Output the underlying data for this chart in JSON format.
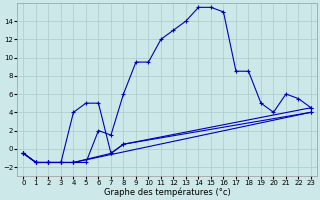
{
  "xlabel": "Graphe des températures (°c)",
  "background_color": "#cce8e8",
  "grid_color": "#aacccc",
  "line_color": "#0000bb",
  "xlim": [
    -0.5,
    23.5
  ],
  "ylim": [
    -3.0,
    16.0
  ],
  "xticks": [
    0,
    1,
    2,
    3,
    4,
    5,
    6,
    7,
    8,
    9,
    10,
    11,
    12,
    13,
    14,
    15,
    16,
    17,
    18,
    19,
    20,
    21,
    22,
    23
  ],
  "yticks": [
    -2,
    0,
    2,
    4,
    6,
    8,
    10,
    12,
    14
  ],
  "series_main": [
    [
      0,
      -0.5
    ],
    [
      1,
      -1.5
    ],
    [
      2,
      -1.5
    ],
    [
      3,
      -1.5
    ],
    [
      4,
      -1.5
    ],
    [
      5,
      -1.5
    ],
    [
      6,
      2.0
    ],
    [
      7,
      1.5
    ],
    [
      8,
      6.0
    ],
    [
      9,
      9.5
    ],
    [
      10,
      9.5
    ],
    [
      11,
      12.0
    ],
    [
      12,
      13.0
    ],
    [
      13,
      14.0
    ],
    [
      14,
      15.5
    ],
    [
      15,
      15.5
    ],
    [
      16,
      15.0
    ],
    [
      17,
      8.5
    ],
    [
      18,
      8.5
    ],
    [
      19,
      5.0
    ],
    [
      20,
      4.0
    ],
    [
      21,
      6.0
    ],
    [
      22,
      5.5
    ],
    [
      23,
      4.5
    ]
  ],
  "series2": [
    [
      0,
      -0.5
    ],
    [
      1,
      -1.5
    ],
    [
      2,
      -1.5
    ],
    [
      3,
      -1.5
    ],
    [
      4,
      4.0
    ],
    [
      5,
      5.0
    ],
    [
      6,
      5.0
    ],
    [
      7,
      -0.5
    ],
    [
      8,
      0.5
    ],
    [
      23,
      4.5
    ]
  ],
  "series3": [
    [
      0,
      -0.5
    ],
    [
      1,
      -1.5
    ],
    [
      2,
      -1.5
    ],
    [
      3,
      -1.5
    ],
    [
      4,
      -1.5
    ],
    [
      7,
      -0.5
    ],
    [
      8,
      0.5
    ],
    [
      23,
      4.0
    ]
  ],
  "series4": [
    [
      0,
      -0.5
    ],
    [
      1,
      -1.5
    ],
    [
      2,
      -1.5
    ],
    [
      3,
      -1.5
    ],
    [
      4,
      -1.5
    ],
    [
      23,
      4.0
    ]
  ]
}
